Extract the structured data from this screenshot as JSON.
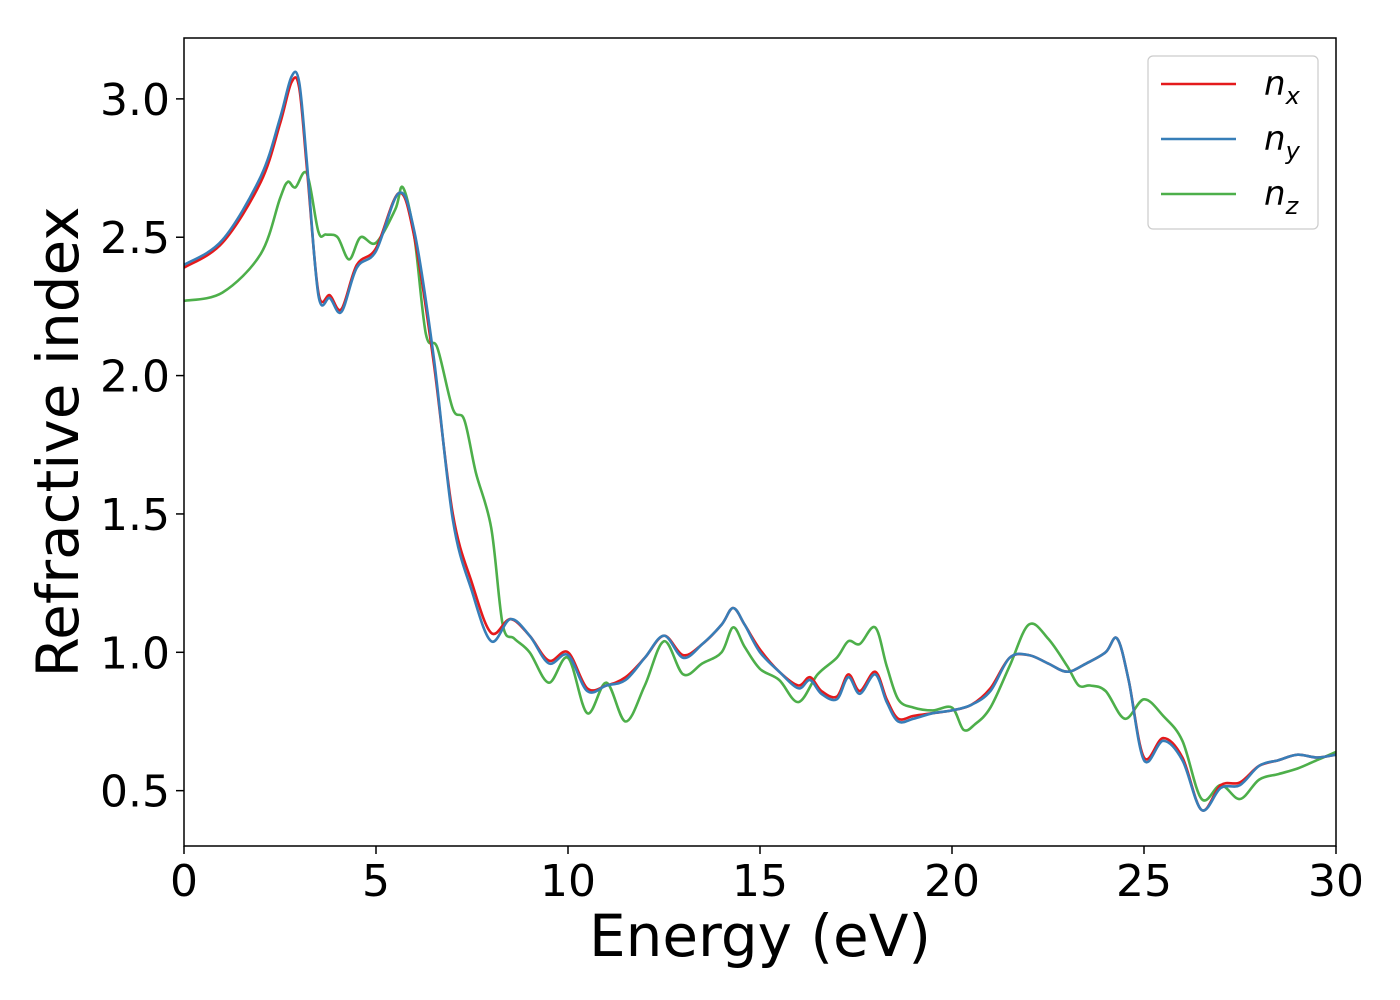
{
  "chart_data": {
    "type": "line",
    "xlabel": "Energy (eV)",
    "ylabel": "Refractive index",
    "xlim": [
      0,
      30
    ],
    "ylim": [
      0.3,
      3.22
    ],
    "xticks": [
      "0",
      "5",
      "10",
      "15",
      "20",
      "25",
      "30"
    ],
    "xtick_values": [
      0,
      5,
      10,
      15,
      20,
      25,
      30
    ],
    "yticks": [
      "0.5",
      "1.0",
      "1.5",
      "2.0",
      "2.5",
      "3.0"
    ],
    "ytick_values": [
      0.5,
      1.0,
      1.5,
      2.0,
      2.5,
      3.0
    ],
    "grid": false,
    "legend_position": "top-right",
    "series": [
      {
        "name": "n",
        "subscript": "x",
        "color": "#e41a1c",
        "x": [
          0,
          1,
          2,
          2.5,
          2.8,
          3.0,
          3.2,
          3.5,
          3.8,
          4.1,
          4.5,
          5.0,
          5.6,
          6.0,
          6.5,
          7.0,
          7.5,
          8.0,
          8.5,
          9.0,
          9.5,
          10.0,
          10.5,
          11.0,
          11.5,
          12.0,
          12.5,
          13.0,
          13.5,
          14.0,
          14.3,
          14.6,
          15.0,
          15.5,
          16.0,
          16.3,
          16.6,
          17.0,
          17.3,
          17.6,
          18.0,
          18.3,
          18.6,
          19.0,
          19.5,
          20.0,
          20.5,
          21.0,
          21.5,
          22.0,
          22.5,
          23.0,
          23.5,
          24.0,
          24.3,
          24.6,
          25.0,
          25.5,
          26.0,
          26.5,
          27.0,
          27.5,
          28.0,
          28.5,
          29.0,
          29.5,
          30.0
        ],
        "y": [
          2.39,
          2.48,
          2.7,
          2.91,
          3.06,
          3.04,
          2.75,
          2.3,
          2.29,
          2.24,
          2.4,
          2.46,
          2.66,
          2.5,
          2.05,
          1.5,
          1.25,
          1.07,
          1.12,
          1.06,
          0.97,
          1.0,
          0.87,
          0.88,
          0.91,
          0.98,
          1.06,
          0.99,
          1.03,
          1.1,
          1.16,
          1.1,
          1.01,
          0.93,
          0.88,
          0.91,
          0.86,
          0.84,
          0.92,
          0.86,
          0.93,
          0.83,
          0.76,
          0.77,
          0.78,
          0.79,
          0.81,
          0.87,
          0.98,
          0.99,
          0.96,
          0.93,
          0.96,
          1.0,
          1.05,
          0.9,
          0.62,
          0.69,
          0.62,
          0.43,
          0.52,
          0.53,
          0.59,
          0.61,
          0.63,
          0.62,
          0.63
        ]
      },
      {
        "name": "n",
        "subscript": "y",
        "color": "#377eb8",
        "x": [
          0,
          1,
          2,
          2.5,
          2.8,
          3.0,
          3.2,
          3.5,
          3.8,
          4.1,
          4.5,
          5.0,
          5.6,
          6.0,
          6.5,
          7.0,
          7.5,
          8.0,
          8.5,
          9.0,
          9.5,
          10.0,
          10.5,
          11.0,
          11.5,
          12.0,
          12.5,
          13.0,
          13.5,
          14.0,
          14.3,
          14.6,
          15.0,
          15.5,
          16.0,
          16.3,
          16.6,
          17.0,
          17.3,
          17.6,
          18.0,
          18.3,
          18.6,
          19.0,
          19.5,
          20.0,
          20.5,
          21.0,
          21.5,
          22.0,
          22.5,
          23.0,
          23.5,
          24.0,
          24.3,
          24.6,
          25.0,
          25.5,
          26.0,
          26.5,
          27.0,
          27.5,
          28.0,
          28.5,
          29.0,
          29.5,
          30.0
        ],
        "y": [
          2.4,
          2.49,
          2.72,
          2.93,
          3.08,
          3.06,
          2.77,
          2.29,
          2.28,
          2.23,
          2.39,
          2.45,
          2.66,
          2.52,
          2.07,
          1.48,
          1.22,
          1.04,
          1.12,
          1.06,
          0.96,
          0.99,
          0.86,
          0.88,
          0.9,
          0.98,
          1.06,
          0.98,
          1.03,
          1.1,
          1.16,
          1.1,
          1.0,
          0.93,
          0.87,
          0.9,
          0.85,
          0.83,
          0.91,
          0.85,
          0.92,
          0.82,
          0.75,
          0.76,
          0.78,
          0.79,
          0.81,
          0.86,
          0.98,
          0.99,
          0.96,
          0.93,
          0.96,
          1.0,
          1.05,
          0.9,
          0.61,
          0.68,
          0.61,
          0.43,
          0.51,
          0.52,
          0.59,
          0.61,
          0.63,
          0.62,
          0.63
        ]
      },
      {
        "name": "n",
        "subscript": "z",
        "color": "#4daf4a",
        "x": [
          0,
          1,
          2,
          2.5,
          2.7,
          2.9,
          3.2,
          3.5,
          3.7,
          4.0,
          4.3,
          4.6,
          5.0,
          5.5,
          5.7,
          6.0,
          6.3,
          6.6,
          7.0,
          7.3,
          7.6,
          8.0,
          8.3,
          8.6,
          9.0,
          9.5,
          10.0,
          10.5,
          11.0,
          11.5,
          12.0,
          12.5,
          13.0,
          13.5,
          14.0,
          14.3,
          14.6,
          15.0,
          15.5,
          16.0,
          16.5,
          17.0,
          17.3,
          17.6,
          18.0,
          18.3,
          18.6,
          19.0,
          19.5,
          20.0,
          20.3,
          20.6,
          21.0,
          21.5,
          22.0,
          22.5,
          23.0,
          23.3,
          23.6,
          24.0,
          24.5,
          25.0,
          25.5,
          26.0,
          26.5,
          27.0,
          27.5,
          28.0,
          28.5,
          29.0,
          29.5,
          30.0
        ],
        "y": [
          2.27,
          2.3,
          2.44,
          2.64,
          2.7,
          2.68,
          2.73,
          2.52,
          2.51,
          2.5,
          2.42,
          2.5,
          2.48,
          2.6,
          2.68,
          2.5,
          2.15,
          2.1,
          1.88,
          1.84,
          1.65,
          1.45,
          1.1,
          1.05,
          1.0,
          0.89,
          0.98,
          0.78,
          0.89,
          0.75,
          0.88,
          1.04,
          0.92,
          0.96,
          1.0,
          1.09,
          1.02,
          0.94,
          0.9,
          0.82,
          0.92,
          0.98,
          1.04,
          1.03,
          1.09,
          0.95,
          0.83,
          0.8,
          0.79,
          0.8,
          0.72,
          0.74,
          0.8,
          0.95,
          1.1,
          1.05,
          0.95,
          0.88,
          0.88,
          0.86,
          0.76,
          0.83,
          0.77,
          0.68,
          0.47,
          0.52,
          0.47,
          0.54,
          0.56,
          0.58,
          0.61,
          0.64
        ]
      }
    ]
  }
}
